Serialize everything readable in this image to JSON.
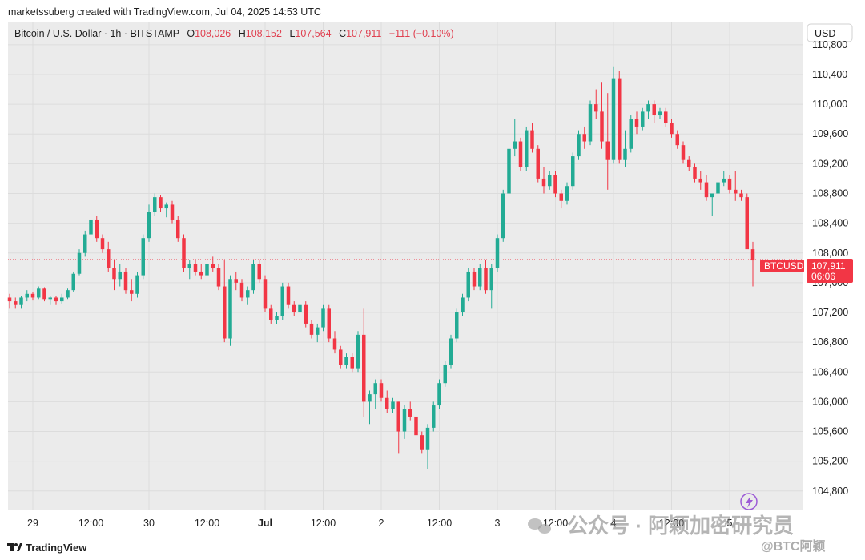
{
  "header": {
    "credit": "marketssuberg created with TradingView.com, Jul 04, 2025 14:53 UTC",
    "symbol": "Bitcoin / U.S. Dollar · 1h · BITSTAMP",
    "o_label": "O",
    "o_value": "108,026",
    "h_label": "H",
    "h_value": "108,152",
    "l_label": "L",
    "l_value": "107,564",
    "c_label": "C",
    "c_value": "107,911",
    "change": "−111 (−0.10%)"
  },
  "currency_button": "USD",
  "price_marker": {
    "ticker": "BTCUSD",
    "price": "107,911",
    "countdown": "06:06"
  },
  "footer": {
    "brand": "TradingView"
  },
  "watermark": {
    "text": "公众号 · 阿颖加密研究员",
    "handle": "@BTC阿颖"
  },
  "colors": {
    "up": "#22ab94",
    "down": "#f23645",
    "grid": "#e8e8e8",
    "price_line": "#f23645",
    "plot_bg": "#ebebeb"
  },
  "chart_data": {
    "type": "candlestick",
    "title": "Bitcoin / U.S. Dollar · 1h · BITSTAMP",
    "y_axis": {
      "ticks": [
        104800,
        105200,
        105600,
        106000,
        106400,
        106800,
        107200,
        107600,
        108000,
        108400,
        108800,
        109200,
        109600,
        110000,
        110400,
        110800
      ],
      "tick_labels": [
        "104,800",
        "105,200",
        "105,600",
        "106,000",
        "106,400",
        "106,800",
        "107,200",
        "107,600",
        "108,000",
        "108,400",
        "108,800",
        "109,200",
        "109,600",
        "110,000",
        "110,400",
        "110,800"
      ],
      "range": [
        104550,
        111100
      ]
    },
    "x_axis": {
      "tick_labels": [
        "29",
        "12:00",
        "30",
        "12:00",
        "Jul",
        "12:00",
        "2",
        "12:00",
        "3",
        "12:00",
        "4",
        "12:00",
        "5"
      ],
      "tick_bar_index": [
        4,
        14,
        24,
        34,
        44,
        54,
        64,
        74,
        84,
        94,
        104,
        114,
        124
      ],
      "bold": [
        false,
        false,
        false,
        false,
        true,
        false,
        false,
        false,
        false,
        false,
        false,
        false,
        false
      ]
    },
    "last_price": 107911,
    "candles": [
      [
        107400,
        107450,
        107250,
        107350
      ],
      [
        107350,
        107400,
        107250,
        107300
      ],
      [
        107300,
        107420,
        107250,
        107400
      ],
      [
        107400,
        107500,
        107350,
        107450
      ],
      [
        107450,
        107480,
        107360,
        107400
      ],
      [
        107400,
        107550,
        107380,
        107520
      ],
      [
        107520,
        107540,
        107350,
        107380
      ],
      [
        107380,
        107420,
        107300,
        107400
      ],
      [
        107400,
        107420,
        107300,
        107350
      ],
      [
        107350,
        107450,
        107320,
        107400
      ],
      [
        107400,
        107520,
        107380,
        107500
      ],
      [
        107500,
        107750,
        107480,
        107720
      ],
      [
        107720,
        108050,
        107700,
        108000
      ],
      [
        108000,
        108300,
        107950,
        108250
      ],
      [
        108250,
        108500,
        108200,
        108450
      ],
      [
        108450,
        108500,
        108150,
        108200
      ],
      [
        108200,
        108250,
        108000,
        108050
      ],
      [
        108050,
        108150,
        107750,
        107800
      ],
      [
        107800,
        107900,
        107500,
        107650
      ],
      [
        107650,
        107850,
        107550,
        107750
      ],
      [
        107750,
        107800,
        107450,
        107500
      ],
      [
        107500,
        107650,
        107350,
        107450
      ],
      [
        107450,
        107750,
        107400,
        107700
      ],
      [
        107700,
        108250,
        107650,
        108200
      ],
      [
        108200,
        108650,
        108150,
        108550
      ],
      [
        108550,
        108800,
        108500,
        108750
      ],
      [
        108750,
        108780,
        108550,
        108600
      ],
      [
        108600,
        108680,
        108480,
        108650
      ],
      [
        108650,
        108700,
        108400,
        108450
      ],
      [
        108450,
        108500,
        108150,
        108200
      ],
      [
        108200,
        108250,
        107750,
        107800
      ],
      [
        107800,
        107900,
        107650,
        107850
      ],
      [
        107850,
        107900,
        107700,
        107750
      ],
      [
        107750,
        107850,
        107650,
        107700
      ],
      [
        107700,
        107900,
        107650,
        107850
      ],
      [
        107850,
        107950,
        107750,
        107800
      ],
      [
        107800,
        107850,
        107500,
        107550
      ],
      [
        107550,
        107900,
        106800,
        106850
      ],
      [
        106850,
        107700,
        106750,
        107650
      ],
      [
        107650,
        107750,
        107500,
        107600
      ],
      [
        107600,
        107650,
        107350,
        107400
      ],
      [
        107400,
        107550,
        107300,
        107500
      ],
      [
        107500,
        107900,
        107450,
        107850
      ],
      [
        107850,
        107900,
        107600,
        107650
      ],
      [
        107650,
        107700,
        107200,
        107250
      ],
      [
        107250,
        107300,
        107050,
        107100
      ],
      [
        107100,
        107200,
        107050,
        107150
      ],
      [
        107150,
        107600,
        107100,
        107550
      ],
      [
        107550,
        107600,
        107250,
        107300
      ],
      [
        107300,
        107350,
        107150,
        107200
      ],
      [
        107200,
        107350,
        107150,
        107300
      ],
      [
        107300,
        107350,
        107000,
        107050
      ],
      [
        107050,
        107100,
        106850,
        106900
      ],
      [
        106900,
        107050,
        106800,
        107000
      ],
      [
        107000,
        107300,
        106950,
        107250
      ],
      [
        107250,
        107300,
        106800,
        106850
      ],
      [
        106850,
        106950,
        106650,
        106700
      ],
      [
        106700,
        106750,
        106450,
        106500
      ],
      [
        106500,
        106650,
        106450,
        106600
      ],
      [
        106600,
        106650,
        106400,
        106450
      ],
      [
        106450,
        106950,
        106400,
        106900
      ],
      [
        106900,
        107250,
        105800,
        106000
      ],
      [
        106000,
        106150,
        105700,
        106100
      ],
      [
        106100,
        106300,
        105900,
        106250
      ],
      [
        106250,
        106300,
        106000,
        106050
      ],
      [
        106050,
        106150,
        105850,
        105900
      ],
      [
        105900,
        106050,
        105850,
        106000
      ],
      [
        106000,
        106000,
        105300,
        105600
      ],
      [
        105600,
        105950,
        105500,
        105900
      ],
      [
        105900,
        106000,
        105750,
        105800
      ],
      [
        105800,
        105850,
        105500,
        105550
      ],
      [
        105550,
        105600,
        105300,
        105350
      ],
      [
        105350,
        105700,
        105100,
        105650
      ],
      [
        105650,
        106000,
        105600,
        105950
      ],
      [
        105950,
        106300,
        105900,
        106250
      ],
      [
        106250,
        106550,
        106200,
        106500
      ],
      [
        106500,
        106900,
        106450,
        106850
      ],
      [
        106850,
        107250,
        106800,
        107200
      ],
      [
        107200,
        107450,
        107150,
        107400
      ],
      [
        107400,
        107800,
        107350,
        107750
      ],
      [
        107750,
        107800,
        107500,
        107550
      ],
      [
        107550,
        107850,
        107500,
        107800
      ],
      [
        107800,
        107900,
        107450,
        107500
      ],
      [
        107500,
        107850,
        107250,
        107800
      ],
      [
        107800,
        108250,
        107750,
        108200
      ],
      [
        108200,
        108850,
        108150,
        108800
      ],
      [
        108800,
        109450,
        108750,
        109400
      ],
      [
        109400,
        109800,
        109300,
        109500
      ],
      [
        109500,
        109550,
        109100,
        109150
      ],
      [
        109150,
        109700,
        109100,
        109650
      ],
      [
        109650,
        109750,
        109350,
        109400
      ],
      [
        109400,
        109450,
        108950,
        109000
      ],
      [
        109000,
        109150,
        108800,
        108900
      ],
      [
        108900,
        109100,
        108850,
        109050
      ],
      [
        109050,
        109100,
        108750,
        108800
      ],
      [
        108800,
        108850,
        108600,
        108700
      ],
      [
        108700,
        108950,
        108650,
        108900
      ],
      [
        108900,
        109350,
        108850,
        109300
      ],
      [
        109300,
        109650,
        109250,
        109600
      ],
      [
        109600,
        109700,
        109400,
        109500
      ],
      [
        109500,
        110050,
        109450,
        110000
      ],
      [
        110000,
        110200,
        109800,
        109900
      ],
      [
        109900,
        110300,
        109400,
        109500
      ],
      [
        109500,
        110150,
        108850,
        109250
      ],
      [
        109250,
        110500,
        109200,
        110350
      ],
      [
        110350,
        110450,
        109200,
        109250
      ],
      [
        109250,
        109650,
        109150,
        109400
      ],
      [
        109400,
        109850,
        109350,
        109800
      ],
      [
        109800,
        109900,
        109600,
        109700
      ],
      [
        109700,
        109950,
        109650,
        109900
      ],
      [
        109900,
        110050,
        109800,
        110000
      ],
      [
        110000,
        110050,
        109750,
        109850
      ],
      [
        109850,
        109950,
        109800,
        109900
      ],
      [
        109900,
        109950,
        109700,
        109750
      ],
      [
        109750,
        109800,
        109550,
        109600
      ],
      [
        109600,
        109650,
        109400,
        109450
      ],
      [
        109450,
        109500,
        109200,
        109250
      ],
      [
        109250,
        109300,
        109100,
        109150
      ],
      [
        109150,
        109200,
        108950,
        109000
      ],
      [
        109000,
        109100,
        108850,
        108950
      ],
      [
        108950,
        109050,
        108700,
        108750
      ],
      [
        108750,
        108800,
        108500,
        108800
      ],
      [
        108800,
        109000,
        108750,
        108950
      ],
      [
        108950,
        109100,
        108900,
        109000
      ],
      [
        109000,
        109050,
        108800,
        108850
      ],
      [
        108850,
        109100,
        108700,
        108800
      ],
      [
        108800,
        108850,
        108700,
        108750
      ],
      [
        108750,
        108800,
        108100,
        108050
      ],
      [
        108050,
        108150,
        107550,
        107900
      ]
    ]
  }
}
